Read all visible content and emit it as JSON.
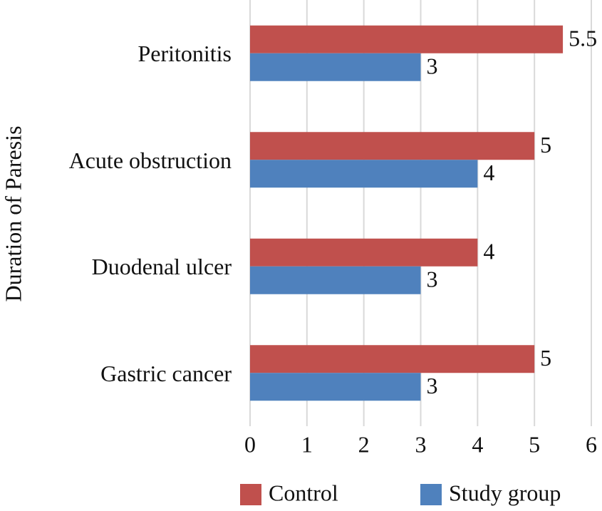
{
  "chart_data": {
    "type": "hbar",
    "y_label": "Duration of Paresis",
    "categories": [
      "Peritonitis",
      "Acute obstruction",
      "Duodenal ulcer",
      "Gastric cancer"
    ],
    "series": [
      {
        "name": "Control",
        "color": "#c0504d",
        "values": [
          5.5,
          5,
          4,
          5
        ]
      },
      {
        "name": "Study group",
        "color": "#4f81bd",
        "values": [
          3,
          4,
          3,
          3
        ]
      }
    ],
    "xlim": [
      0,
      6
    ],
    "xticks": [
      0,
      1,
      2,
      3,
      4,
      5,
      6
    ],
    "grid": true,
    "legend": "bottom"
  }
}
